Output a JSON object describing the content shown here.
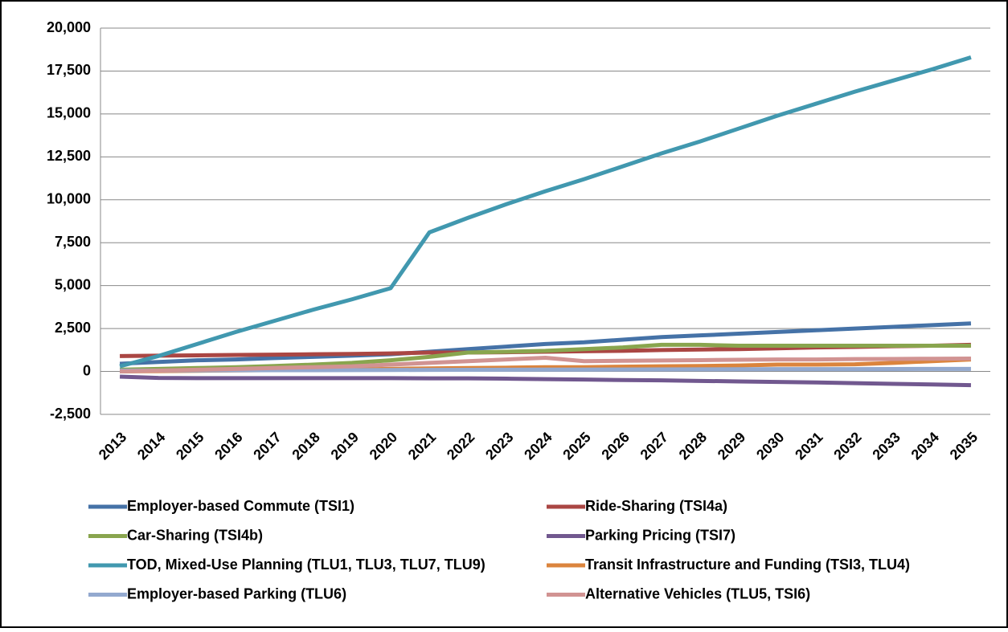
{
  "chart_data": {
    "type": "line",
    "categories": [
      "2013",
      "2014",
      "2015",
      "2016",
      "2017",
      "2018",
      "2019",
      "2020",
      "2021",
      "2022",
      "2023",
      "2024",
      "2025",
      "2026",
      "2027",
      "2028",
      "2029",
      "2030",
      "2031",
      "2032",
      "2033",
      "2034",
      "2035"
    ],
    "ylim": [
      -2500,
      20000
    ],
    "yticks": [
      {
        "value": -2500,
        "label": "-2,500"
      },
      0,
      {
        "value": 2500,
        "label": "2,500"
      },
      {
        "value": 5000,
        "label": "5,000"
      },
      {
        "value": 7500,
        "label": "7,500"
      },
      {
        "value": 10000,
        "label": "10,000"
      },
      {
        "value": 12500,
        "label": "12,500"
      },
      {
        "value": 15000,
        "label": "15,000"
      },
      {
        "value": 17500,
        "label": "17,500"
      },
      {
        "value": 20000,
        "label": "20,000"
      }
    ],
    "grid": true,
    "legend": "bottom",
    "series": [
      {
        "name": "Employer-based Commute (TSI1)",
        "color": "#4572a7",
        "values": [
          450,
          550,
          650,
          700,
          780,
          850,
          920,
          1000,
          1150,
          1300,
          1450,
          1600,
          1700,
          1850,
          2000,
          2100,
          2200,
          2300,
          2400,
          2500,
          2600,
          2700,
          2800
        ]
      },
      {
        "name": "Ride-Sharing (TSI4a)",
        "color": "#aa4643",
        "values": [
          900,
          920,
          940,
          960,
          980,
          1000,
          1020,
          1050,
          1100,
          1100,
          1120,
          1150,
          1180,
          1200,
          1250,
          1280,
          1300,
          1350,
          1400,
          1430,
          1470,
          1500,
          1550
        ]
      },
      {
        "name": "Car-Sharing (TSI4b)",
        "color": "#89a54e",
        "values": [
          100,
          150,
          200,
          250,
          320,
          400,
          500,
          650,
          850,
          1100,
          1150,
          1200,
          1300,
          1400,
          1550,
          1550,
          1500,
          1500,
          1500,
          1500,
          1500,
          1500,
          1500
        ]
      },
      {
        "name": "Parking Pricing (TSI7)",
        "color": "#71588f",
        "values": [
          -300,
          -380,
          -390,
          -390,
          -390,
          -390,
          -390,
          -390,
          -400,
          -400,
          -420,
          -450,
          -470,
          -500,
          -520,
          -550,
          -580,
          -610,
          -640,
          -680,
          -720,
          -760,
          -800
        ]
      },
      {
        "name": "TOD, Mixed-Use Planning (TLU1, TLU3, TLU7, TLU9)",
        "color": "#4198af",
        "values": [
          300,
          900,
          1600,
          2300,
          2950,
          3600,
          4200,
          4850,
          8100,
          8950,
          9750,
          10500,
          11200,
          11950,
          12700,
          13400,
          14150,
          14900,
          15600,
          16300,
          16950,
          17600,
          18300
        ]
      },
      {
        "name": "Transit Infrastructure and Funding (TSI3, TLU4)",
        "color": "#db843d",
        "values": [
          0,
          20,
          40,
          60,
          80,
          100,
          120,
          150,
          180,
          200,
          220,
          250,
          250,
          280,
          300,
          320,
          350,
          400,
          400,
          420,
          500,
          600,
          700
        ]
      },
      {
        "name": "Employer-based Parking (TLU6)",
        "color": "#93a9cf",
        "values": [
          50,
          55,
          60,
          65,
          70,
          75,
          80,
          85,
          90,
          95,
          100,
          105,
          110,
          115,
          120,
          125,
          130,
          135,
          140,
          140,
          145,
          150,
          150
        ]
      },
      {
        "name": "Alternative Vehicles (TLU5, TSI6)",
        "color": "#d19392",
        "values": [
          0,
          50,
          100,
          150,
          200,
          250,
          300,
          400,
          500,
          600,
          700,
          800,
          600,
          620,
          640,
          660,
          680,
          700,
          700,
          720,
          730,
          740,
          750
        ]
      }
    ]
  }
}
